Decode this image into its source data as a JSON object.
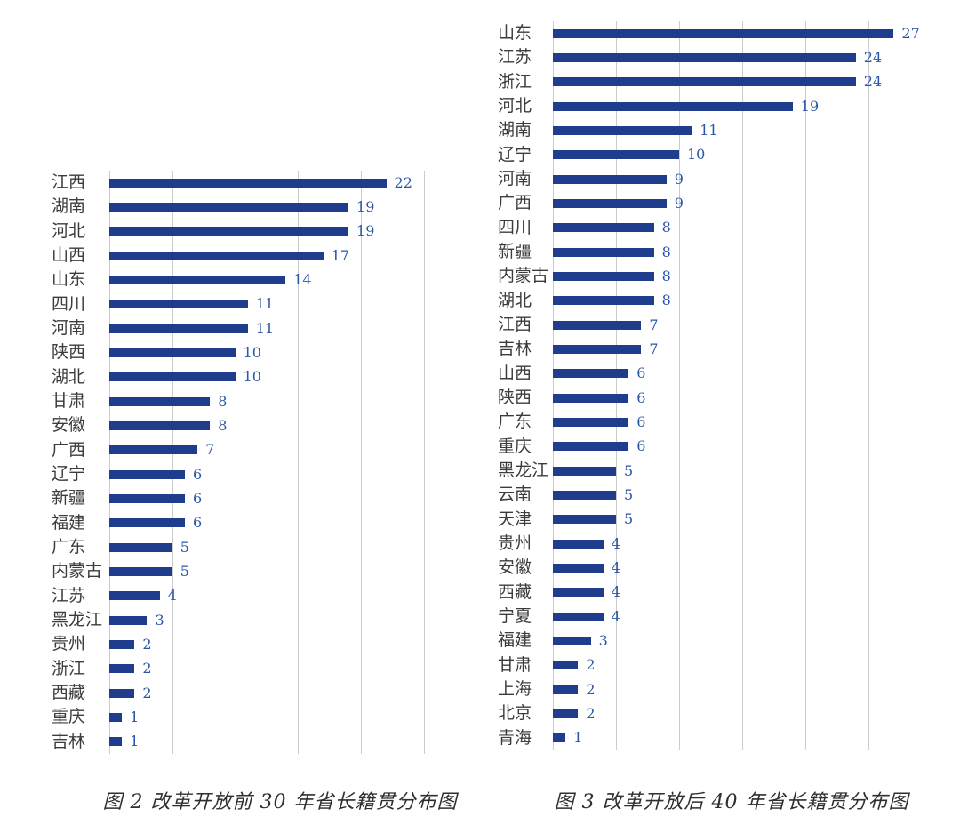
{
  "colors": {
    "bar": "#1F3C8D",
    "value_label": "#2A56A8",
    "category_label": "#3C3C3C",
    "gridline": "#CBCBCB",
    "caption": "#2F2F2F",
    "background": "#FFFFFF"
  },
  "chart_data": [
    {
      "type": "bar",
      "orientation": "horizontal",
      "title": "图 2  改革开放前 30 年省长籍贯分布图",
      "categories": [
        "江西",
        "湖南",
        "河北",
        "山西",
        "山东",
        "四川",
        "河南",
        "陕西",
        "湖北",
        "甘肃",
        "安徽",
        "广西",
        "辽宁",
        "新疆",
        "福建",
        "广东",
        "内蒙古",
        "江苏",
        "黑龙江",
        "贵州",
        "浙江",
        "西藏",
        "重庆",
        "吉林"
      ],
      "values": [
        22,
        19,
        19,
        17,
        14,
        11,
        11,
        10,
        10,
        8,
        8,
        7,
        6,
        6,
        6,
        5,
        5,
        4,
        3,
        2,
        2,
        2,
        1,
        1
      ],
      "xlim": [
        0,
        25
      ],
      "gridline_interval": 5,
      "grid": true,
      "legend": "none",
      "value_labels": true,
      "xlabel": "",
      "ylabel": ""
    },
    {
      "type": "bar",
      "orientation": "horizontal",
      "title": "图 3  改革开放后 40 年省长籍贯分布图",
      "categories": [
        "山东",
        "江苏",
        "浙江",
        "河北",
        "湖南",
        "辽宁",
        "河南",
        "广西",
        "四川",
        "新疆",
        "内蒙古",
        "湖北",
        "江西",
        "吉林",
        "山西",
        "陕西",
        "广东",
        "重庆",
        "黑龙江",
        "云南",
        "天津",
        "贵州",
        "安徽",
        "西藏",
        "宁夏",
        "福建",
        "甘肃",
        "上海",
        "北京",
        "青海"
      ],
      "values": [
        27,
        24,
        24,
        19,
        11,
        10,
        9,
        9,
        8,
        8,
        8,
        8,
        7,
        7,
        6,
        6,
        6,
        6,
        5,
        5,
        5,
        4,
        4,
        4,
        4,
        3,
        2,
        2,
        2,
        1
      ],
      "xlim": [
        0,
        25
      ],
      "gridline_interval": 5,
      "grid": true,
      "legend": "none",
      "value_labels": true,
      "xlabel": "",
      "ylabel": ""
    }
  ]
}
